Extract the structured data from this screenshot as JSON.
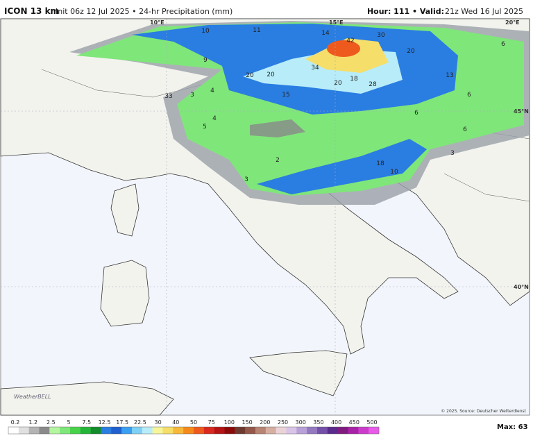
{
  "header": {
    "model": "ICON 13 km",
    "init": "Init 06z 12 Jul 2025 • 24-hr Precipitation (mm)",
    "valid_prefix": "Hour: 111 • Valid:",
    "valid": "21z Wed 16 Jul 2025"
  },
  "map": {
    "grid_labels": [
      "15°E",
      "20°E",
      "45°N",
      "40°N",
      "10°E"
    ],
    "precip_labels": [
      "10",
      "11",
      "14",
      "42",
      "30",
      "20",
      "6",
      "9",
      "20",
      "20",
      "34",
      "15",
      "20",
      "18",
      "28",
      "13",
      "6",
      "6",
      "33",
      "3",
      "4",
      "5",
      "4",
      "6",
      "3",
      "18",
      "10",
      "3",
      "2"
    ],
    "credit": "© 2025. Source: Deutscher Wetterdienst",
    "watermark": "WeatherBELL"
  },
  "legend": {
    "labels": [
      "0.2",
      "1.2",
      "2.5",
      "5",
      "7.5",
      "12.5",
      "17.5",
      "22.5",
      "30",
      "40",
      "50",
      "75",
      "100",
      "150",
      "200",
      "250",
      "300",
      "350",
      "400",
      "450",
      "500"
    ],
    "colors": [
      "#ffffff",
      "#e0e0e0",
      "#b4b4b4",
      "#8a8a8a",
      "#b4f5a0",
      "#7fe67a",
      "#48d24a",
      "#25b43a",
      "#148c2c",
      "#2a7de1",
      "#1f5fcf",
      "#3a9ff0",
      "#7fd0f5",
      "#b8ecf8",
      "#f7f59a",
      "#f5de6a",
      "#f7b83a",
      "#f58a1c",
      "#ee5a1e",
      "#d8291e",
      "#b41414",
      "#8a0a0a",
      "#6e3a30",
      "#94584a",
      "#b88474",
      "#d6aea2",
      "#ead2d6",
      "#d8c4e6",
      "#b8a0d8",
      "#9478c0",
      "#7450a8",
      "#5a2a8c",
      "#801c80",
      "#a822a8",
      "#cc3ccc",
      "#e85ae8"
    ],
    "max": "Max: 63"
  }
}
